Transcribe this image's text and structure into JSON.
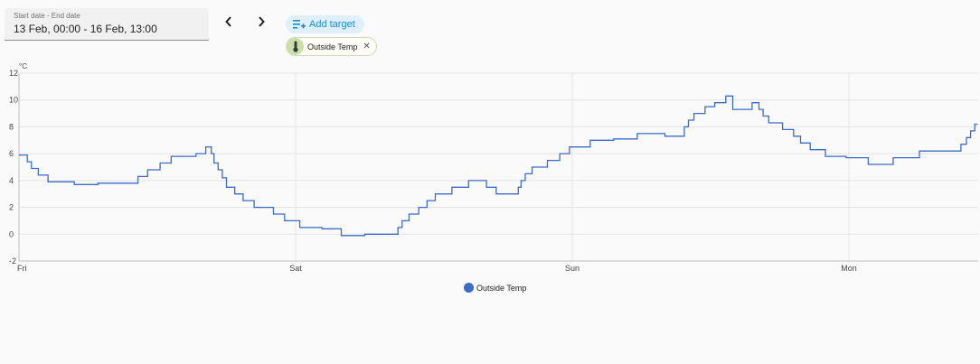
{
  "date_picker": {
    "label": "Start date - End date",
    "value": "13 Feb, 00:00 - 16 Feb, 13:00"
  },
  "nav": {
    "prev_icon": "chevron-left-icon",
    "next_icon": "chevron-right-icon"
  },
  "add_target": {
    "label": "Add target",
    "icon": "playlist-add-icon"
  },
  "target_chip": {
    "label": "Outside Temp",
    "icon": "thermometer-icon",
    "close_icon": "close-icon"
  },
  "colors": {
    "series": "#3b6cc7",
    "accent": "#1a8ac8",
    "chip_avatar": "#c9dfa8"
  },
  "chart_data": {
    "type": "line",
    "title": "",
    "unit": "°C",
    "ylim": [
      -2,
      12
    ],
    "yticks": [
      -2,
      0,
      2,
      4,
      6,
      8,
      10,
      12
    ],
    "xlim": [
      0,
      3.465
    ],
    "xticks": [
      {
        "value": 0,
        "label": "Fri"
      },
      {
        "value": 1,
        "label": "Sat"
      },
      {
        "value": 2,
        "label": "Sun"
      },
      {
        "value": 3,
        "label": "Mon"
      }
    ],
    "grid": true,
    "legend_position": "bottom-center",
    "series": [
      {
        "name": "Outside Temp",
        "step": true,
        "points": [
          [
            0.0,
            5.9
          ],
          [
            0.03,
            5.4
          ],
          [
            0.045,
            4.9
          ],
          [
            0.07,
            4.4
          ],
          [
            0.105,
            3.9
          ],
          [
            0.2,
            3.7
          ],
          [
            0.285,
            3.8
          ],
          [
            0.43,
            4.3
          ],
          [
            0.465,
            4.8
          ],
          [
            0.51,
            5.3
          ],
          [
            0.55,
            5.8
          ],
          [
            0.64,
            6.0
          ],
          [
            0.675,
            6.5
          ],
          [
            0.695,
            6.0
          ],
          [
            0.705,
            5.3
          ],
          [
            0.72,
            4.8
          ],
          [
            0.735,
            4.2
          ],
          [
            0.75,
            3.5
          ],
          [
            0.78,
            3.0
          ],
          [
            0.81,
            2.5
          ],
          [
            0.85,
            2.0
          ],
          [
            0.92,
            1.5
          ],
          [
            0.96,
            1.0
          ],
          [
            1.015,
            0.5
          ],
          [
            1.095,
            0.4
          ],
          [
            1.165,
            -0.1
          ],
          [
            1.25,
            0.0
          ],
          [
            1.37,
            0.5
          ],
          [
            1.385,
            1.0
          ],
          [
            1.41,
            1.5
          ],
          [
            1.445,
            2.0
          ],
          [
            1.475,
            2.5
          ],
          [
            1.505,
            3.0
          ],
          [
            1.565,
            3.5
          ],
          [
            1.625,
            4.0
          ],
          [
            1.69,
            3.5
          ],
          [
            1.725,
            3.0
          ],
          [
            1.805,
            3.5
          ],
          [
            1.815,
            4.0
          ],
          [
            1.83,
            4.5
          ],
          [
            1.855,
            5.0
          ],
          [
            1.91,
            5.5
          ],
          [
            1.955,
            6.0
          ],
          [
            1.99,
            6.5
          ],
          [
            2.065,
            7.0
          ],
          [
            2.15,
            7.1
          ],
          [
            2.235,
            7.5
          ],
          [
            2.335,
            7.3
          ],
          [
            2.405,
            8.0
          ],
          [
            2.42,
            8.5
          ],
          [
            2.44,
            9.0
          ],
          [
            2.48,
            9.5
          ],
          [
            2.515,
            9.8
          ],
          [
            2.555,
            10.3
          ],
          [
            2.58,
            9.3
          ],
          [
            2.65,
            9.8
          ],
          [
            2.675,
            9.3
          ],
          [
            2.69,
            8.8
          ],
          [
            2.71,
            8.3
          ],
          [
            2.76,
            7.8
          ],
          [
            2.8,
            7.3
          ],
          [
            2.825,
            6.8
          ],
          [
            2.86,
            6.3
          ],
          [
            2.915,
            5.8
          ],
          [
            2.99,
            5.7
          ],
          [
            3.07,
            5.2
          ],
          [
            3.16,
            5.7
          ],
          [
            3.255,
            6.2
          ],
          [
            3.405,
            6.7
          ],
          [
            3.425,
            7.2
          ],
          [
            3.44,
            7.7
          ],
          [
            3.455,
            8.2
          ],
          [
            3.465,
            8.2
          ]
        ]
      }
    ]
  }
}
